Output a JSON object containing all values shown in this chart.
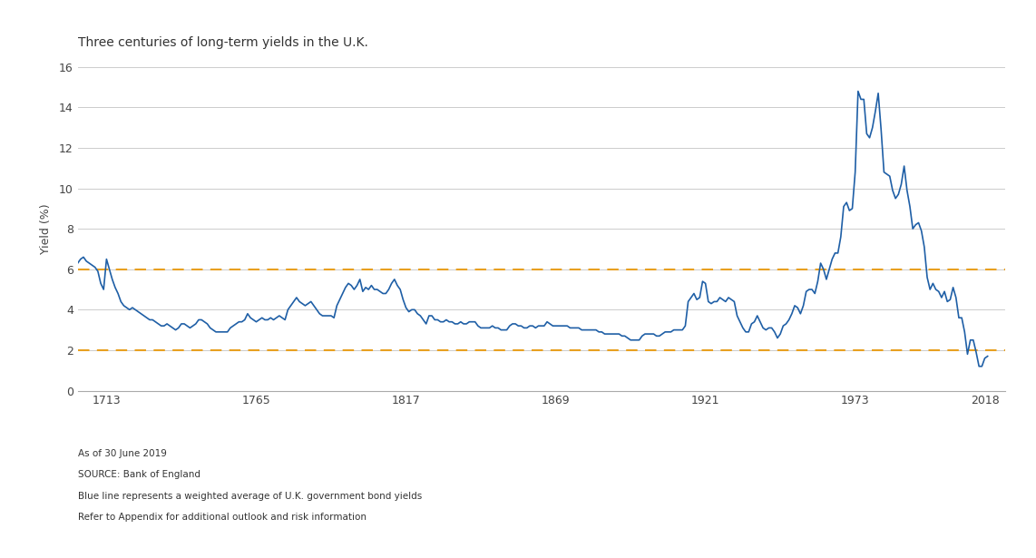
{
  "title": "Three centuries of long-term yields in the U.K.",
  "ylabel": "Yield (%)",
  "ylim": [
    0,
    16
  ],
  "yticks": [
    0,
    2,
    4,
    6,
    8,
    10,
    12,
    14,
    16
  ],
  "xticks": [
    1713,
    1765,
    1817,
    1869,
    1921,
    1973,
    2018
  ],
  "xlim": [
    1703,
    2025
  ],
  "line_color": "#1f5fa6",
  "dashed_line_color": "#E8A020",
  "dashed_levels": [
    2.0,
    6.0
  ],
  "footnote_lines": [
    "As of 30 June 2019",
    "SOURCE: Bank of England",
    "Blue line represents a weighted average of U.K. government bond yields",
    "Refer to Appendix for additional outlook and risk information"
  ],
  "bg_color": "#ffffff",
  "grid_color": "#cccccc",
  "yields": [
    [
      1703,
      6.3
    ],
    [
      1704,
      6.5
    ],
    [
      1705,
      6.6
    ],
    [
      1706,
      6.4
    ],
    [
      1707,
      6.3
    ],
    [
      1708,
      6.2
    ],
    [
      1709,
      6.1
    ],
    [
      1710,
      5.9
    ],
    [
      1711,
      5.3
    ],
    [
      1712,
      5.0
    ],
    [
      1713,
      6.5
    ],
    [
      1714,
      6.0
    ],
    [
      1715,
      5.5
    ],
    [
      1716,
      5.1
    ],
    [
      1717,
      4.8
    ],
    [
      1718,
      4.4
    ],
    [
      1719,
      4.2
    ],
    [
      1720,
      4.1
    ],
    [
      1721,
      4.0
    ],
    [
      1722,
      4.1
    ],
    [
      1723,
      4.0
    ],
    [
      1724,
      3.9
    ],
    [
      1725,
      3.8
    ],
    [
      1726,
      3.7
    ],
    [
      1727,
      3.6
    ],
    [
      1728,
      3.5
    ],
    [
      1729,
      3.5
    ],
    [
      1730,
      3.4
    ],
    [
      1731,
      3.3
    ],
    [
      1732,
      3.2
    ],
    [
      1733,
      3.2
    ],
    [
      1734,
      3.3
    ],
    [
      1735,
      3.2
    ],
    [
      1736,
      3.1
    ],
    [
      1737,
      3.0
    ],
    [
      1738,
      3.1
    ],
    [
      1739,
      3.3
    ],
    [
      1740,
      3.3
    ],
    [
      1741,
      3.2
    ],
    [
      1742,
      3.1
    ],
    [
      1743,
      3.2
    ],
    [
      1744,
      3.3
    ],
    [
      1745,
      3.5
    ],
    [
      1746,
      3.5
    ],
    [
      1747,
      3.4
    ],
    [
      1748,
      3.3
    ],
    [
      1749,
      3.1
    ],
    [
      1750,
      3.0
    ],
    [
      1751,
      2.9
    ],
    [
      1752,
      2.9
    ],
    [
      1753,
      2.9
    ],
    [
      1754,
      2.9
    ],
    [
      1755,
      2.9
    ],
    [
      1756,
      3.1
    ],
    [
      1757,
      3.2
    ],
    [
      1758,
      3.3
    ],
    [
      1759,
      3.4
    ],
    [
      1760,
      3.4
    ],
    [
      1761,
      3.5
    ],
    [
      1762,
      3.8
    ],
    [
      1763,
      3.6
    ],
    [
      1764,
      3.5
    ],
    [
      1765,
      3.4
    ],
    [
      1766,
      3.5
    ],
    [
      1767,
      3.6
    ],
    [
      1768,
      3.5
    ],
    [
      1769,
      3.5
    ],
    [
      1770,
      3.6
    ],
    [
      1771,
      3.5
    ],
    [
      1772,
      3.6
    ],
    [
      1773,
      3.7
    ],
    [
      1774,
      3.6
    ],
    [
      1775,
      3.5
    ],
    [
      1776,
      4.0
    ],
    [
      1777,
      4.2
    ],
    [
      1778,
      4.4
    ],
    [
      1779,
      4.6
    ],
    [
      1780,
      4.4
    ],
    [
      1781,
      4.3
    ],
    [
      1782,
      4.2
    ],
    [
      1783,
      4.3
    ],
    [
      1784,
      4.4
    ],
    [
      1785,
      4.2
    ],
    [
      1786,
      4.0
    ],
    [
      1787,
      3.8
    ],
    [
      1788,
      3.7
    ],
    [
      1789,
      3.7
    ],
    [
      1790,
      3.7
    ],
    [
      1791,
      3.7
    ],
    [
      1792,
      3.6
    ],
    [
      1793,
      4.2
    ],
    [
      1794,
      4.5
    ],
    [
      1795,
      4.8
    ],
    [
      1796,
      5.1
    ],
    [
      1797,
      5.3
    ],
    [
      1798,
      5.2
    ],
    [
      1799,
      5.0
    ],
    [
      1800,
      5.2
    ],
    [
      1801,
      5.5
    ],
    [
      1802,
      4.9
    ],
    [
      1803,
      5.1
    ],
    [
      1804,
      5.0
    ],
    [
      1805,
      5.2
    ],
    [
      1806,
      5.0
    ],
    [
      1807,
      5.0
    ],
    [
      1808,
      4.9
    ],
    [
      1809,
      4.8
    ],
    [
      1810,
      4.8
    ],
    [
      1811,
      5.0
    ],
    [
      1812,
      5.3
    ],
    [
      1813,
      5.5
    ],
    [
      1814,
      5.2
    ],
    [
      1815,
      5.0
    ],
    [
      1816,
      4.5
    ],
    [
      1817,
      4.1
    ],
    [
      1818,
      3.9
    ],
    [
      1819,
      4.0
    ],
    [
      1820,
      4.0
    ],
    [
      1821,
      3.8
    ],
    [
      1822,
      3.7
    ],
    [
      1823,
      3.5
    ],
    [
      1824,
      3.3
    ],
    [
      1825,
      3.7
    ],
    [
      1826,
      3.7
    ],
    [
      1827,
      3.5
    ],
    [
      1828,
      3.5
    ],
    [
      1829,
      3.4
    ],
    [
      1830,
      3.4
    ],
    [
      1831,
      3.5
    ],
    [
      1832,
      3.4
    ],
    [
      1833,
      3.4
    ],
    [
      1834,
      3.3
    ],
    [
      1835,
      3.3
    ],
    [
      1836,
      3.4
    ],
    [
      1837,
      3.3
    ],
    [
      1838,
      3.3
    ],
    [
      1839,
      3.4
    ],
    [
      1840,
      3.4
    ],
    [
      1841,
      3.4
    ],
    [
      1842,
      3.2
    ],
    [
      1843,
      3.1
    ],
    [
      1844,
      3.1
    ],
    [
      1845,
      3.1
    ],
    [
      1846,
      3.1
    ],
    [
      1847,
      3.2
    ],
    [
      1848,
      3.1
    ],
    [
      1849,
      3.1
    ],
    [
      1850,
      3.0
    ],
    [
      1851,
      3.0
    ],
    [
      1852,
      3.0
    ],
    [
      1853,
      3.2
    ],
    [
      1854,
      3.3
    ],
    [
      1855,
      3.3
    ],
    [
      1856,
      3.2
    ],
    [
      1857,
      3.2
    ],
    [
      1858,
      3.1
    ],
    [
      1859,
      3.1
    ],
    [
      1860,
      3.2
    ],
    [
      1861,
      3.2
    ],
    [
      1862,
      3.1
    ],
    [
      1863,
      3.2
    ],
    [
      1864,
      3.2
    ],
    [
      1865,
      3.2
    ],
    [
      1866,
      3.4
    ],
    [
      1867,
      3.3
    ],
    [
      1868,
      3.2
    ],
    [
      1869,
      3.2
    ],
    [
      1870,
      3.2
    ],
    [
      1871,
      3.2
    ],
    [
      1872,
      3.2
    ],
    [
      1873,
      3.2
    ],
    [
      1874,
      3.1
    ],
    [
      1875,
      3.1
    ],
    [
      1876,
      3.1
    ],
    [
      1877,
      3.1
    ],
    [
      1878,
      3.0
    ],
    [
      1879,
      3.0
    ],
    [
      1880,
      3.0
    ],
    [
      1881,
      3.0
    ],
    [
      1882,
      3.0
    ],
    [
      1883,
      3.0
    ],
    [
      1884,
      2.9
    ],
    [
      1885,
      2.9
    ],
    [
      1886,
      2.8
    ],
    [
      1887,
      2.8
    ],
    [
      1888,
      2.8
    ],
    [
      1889,
      2.8
    ],
    [
      1890,
      2.8
    ],
    [
      1891,
      2.8
    ],
    [
      1892,
      2.7
    ],
    [
      1893,
      2.7
    ],
    [
      1894,
      2.6
    ],
    [
      1895,
      2.5
    ],
    [
      1896,
      2.5
    ],
    [
      1897,
      2.5
    ],
    [
      1898,
      2.5
    ],
    [
      1899,
      2.7
    ],
    [
      1900,
      2.8
    ],
    [
      1901,
      2.8
    ],
    [
      1902,
      2.8
    ],
    [
      1903,
      2.8
    ],
    [
      1904,
      2.7
    ],
    [
      1905,
      2.7
    ],
    [
      1906,
      2.8
    ],
    [
      1907,
      2.9
    ],
    [
      1908,
      2.9
    ],
    [
      1909,
      2.9
    ],
    [
      1910,
      3.0
    ],
    [
      1911,
      3.0
    ],
    [
      1912,
      3.0
    ],
    [
      1913,
      3.0
    ],
    [
      1914,
      3.2
    ],
    [
      1915,
      4.4
    ],
    [
      1916,
      4.6
    ],
    [
      1917,
      4.8
    ],
    [
      1918,
      4.5
    ],
    [
      1919,
      4.6
    ],
    [
      1920,
      5.4
    ],
    [
      1921,
      5.3
    ],
    [
      1922,
      4.4
    ],
    [
      1923,
      4.3
    ],
    [
      1924,
      4.4
    ],
    [
      1925,
      4.4
    ],
    [
      1926,
      4.6
    ],
    [
      1927,
      4.5
    ],
    [
      1928,
      4.4
    ],
    [
      1929,
      4.6
    ],
    [
      1930,
      4.5
    ],
    [
      1931,
      4.4
    ],
    [
      1932,
      3.7
    ],
    [
      1933,
      3.4
    ],
    [
      1934,
      3.1
    ],
    [
      1935,
      2.9
    ],
    [
      1936,
      2.9
    ],
    [
      1937,
      3.3
    ],
    [
      1938,
      3.4
    ],
    [
      1939,
      3.7
    ],
    [
      1940,
      3.4
    ],
    [
      1941,
      3.1
    ],
    [
      1942,
      3.0
    ],
    [
      1943,
      3.1
    ],
    [
      1944,
      3.1
    ],
    [
      1945,
      2.9
    ],
    [
      1946,
      2.6
    ],
    [
      1947,
      2.8
    ],
    [
      1948,
      3.2
    ],
    [
      1949,
      3.3
    ],
    [
      1950,
      3.5
    ],
    [
      1951,
      3.8
    ],
    [
      1952,
      4.2
    ],
    [
      1953,
      4.1
    ],
    [
      1954,
      3.8
    ],
    [
      1955,
      4.2
    ],
    [
      1956,
      4.9
    ],
    [
      1957,
      5.0
    ],
    [
      1958,
      5.0
    ],
    [
      1959,
      4.8
    ],
    [
      1960,
      5.4
    ],
    [
      1961,
      6.3
    ],
    [
      1962,
      6.0
    ],
    [
      1963,
      5.5
    ],
    [
      1964,
      6.0
    ],
    [
      1965,
      6.5
    ],
    [
      1966,
      6.8
    ],
    [
      1967,
      6.8
    ],
    [
      1968,
      7.6
    ],
    [
      1969,
      9.1
    ],
    [
      1970,
      9.3
    ],
    [
      1971,
      8.9
    ],
    [
      1972,
      9.0
    ],
    [
      1973,
      10.8
    ],
    [
      1974,
      14.8
    ],
    [
      1975,
      14.4
    ],
    [
      1976,
      14.4
    ],
    [
      1977,
      12.7
    ],
    [
      1978,
      12.5
    ],
    [
      1979,
      13.0
    ],
    [
      1980,
      13.8
    ],
    [
      1981,
      14.7
    ],
    [
      1982,
      12.9
    ],
    [
      1983,
      10.8
    ],
    [
      1984,
      10.7
    ],
    [
      1985,
      10.6
    ],
    [
      1986,
      9.9
    ],
    [
      1987,
      9.5
    ],
    [
      1988,
      9.7
    ],
    [
      1989,
      10.2
    ],
    [
      1990,
      11.1
    ],
    [
      1991,
      9.9
    ],
    [
      1992,
      9.1
    ],
    [
      1993,
      8.0
    ],
    [
      1994,
      8.2
    ],
    [
      1995,
      8.3
    ],
    [
      1996,
      7.9
    ],
    [
      1997,
      7.1
    ],
    [
      1998,
      5.6
    ],
    [
      1999,
      5.0
    ],
    [
      2000,
      5.3
    ],
    [
      2001,
      5.0
    ],
    [
      2002,
      4.9
    ],
    [
      2003,
      4.6
    ],
    [
      2004,
      4.9
    ],
    [
      2005,
      4.4
    ],
    [
      2006,
      4.5
    ],
    [
      2007,
      5.1
    ],
    [
      2008,
      4.6
    ],
    [
      2009,
      3.6
    ],
    [
      2010,
      3.6
    ],
    [
      2011,
      2.9
    ],
    [
      2012,
      1.8
    ],
    [
      2013,
      2.5
    ],
    [
      2014,
      2.5
    ],
    [
      2015,
      1.9
    ],
    [
      2016,
      1.2
    ],
    [
      2017,
      1.2
    ],
    [
      2018,
      1.6
    ],
    [
      2019,
      1.7
    ]
  ]
}
